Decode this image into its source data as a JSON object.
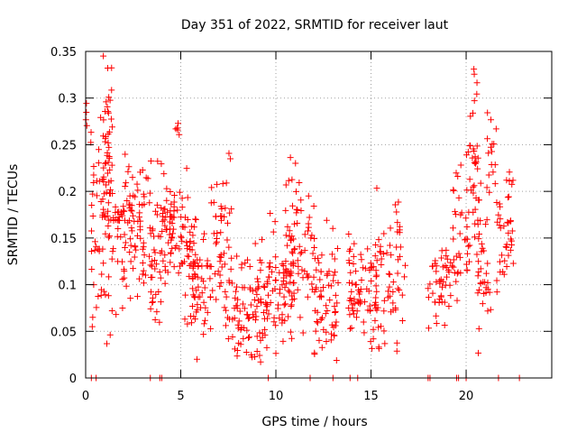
{
  "chart_data": {
    "type": "scatter",
    "title": "Day 351 of 2022, SRMTID for receiver laut",
    "xlabel": "GPS time / hours",
    "ylabel": "SRMTID / TECUs",
    "xlim": [
      0,
      24.5
    ],
    "ylim": [
      0,
      0.35
    ],
    "xticks": [
      0,
      5,
      10,
      15,
      20
    ],
    "yticks": [
      0,
      0.05,
      0.1,
      0.15,
      0.2,
      0.25,
      0.3,
      0.35
    ],
    "ytick_labels": [
      "0",
      "0.05",
      "0.1",
      "0.15",
      "0.2",
      "0.25",
      "0.3",
      "0.35"
    ],
    "grid": true,
    "marker": "+",
    "color": "#ff0000",
    "zero_points_x": [
      0.3,
      0.55,
      3.4,
      3.9,
      4.0,
      9.6,
      11.8,
      13.0,
      13.9,
      14.3,
      18.0,
      18.1,
      19.5,
      19.6,
      20.0,
      21.7,
      22.8
    ],
    "clusters": [
      {
        "x0": 0.0,
        "x1": 0.3,
        "y": 0.28,
        "spread": 0.012,
        "n": 6
      },
      {
        "x0": 0.3,
        "x1": 1.3,
        "y": 0.175,
        "spread": 0.055,
        "n": 70
      },
      {
        "x0": 0.9,
        "x1": 1.4,
        "y": 0.285,
        "spread": 0.035,
        "n": 26
      },
      {
        "x0": 1.3,
        "x1": 2.2,
        "y": 0.15,
        "spread": 0.04,
        "n": 45
      },
      {
        "x0": 2.2,
        "x1": 3.1,
        "y": 0.165,
        "spread": 0.04,
        "n": 55
      },
      {
        "x0": 3.1,
        "x1": 4.0,
        "y": 0.13,
        "spread": 0.04,
        "n": 45
      },
      {
        "x0": 4.0,
        "x1": 5.0,
        "y": 0.155,
        "spread": 0.03,
        "n": 55
      },
      {
        "x0": 4.7,
        "x1": 5.0,
        "y": 0.265,
        "spread": 0.012,
        "n": 5
      },
      {
        "x0": 5.0,
        "x1": 5.8,
        "y": 0.14,
        "spread": 0.035,
        "n": 45
      },
      {
        "x0": 5.5,
        "x1": 6.6,
        "y": 0.1,
        "spread": 0.03,
        "n": 50
      },
      {
        "x0": 6.6,
        "x1": 7.7,
        "y": 0.145,
        "spread": 0.04,
        "n": 55
      },
      {
        "x0": 7.7,
        "x1": 9.6,
        "y": 0.075,
        "spread": 0.03,
        "n": 95
      },
      {
        "x0": 9.6,
        "x1": 11.0,
        "y": 0.1,
        "spread": 0.03,
        "n": 70
      },
      {
        "x0": 10.5,
        "x1": 12.0,
        "y": 0.14,
        "spread": 0.04,
        "n": 60
      },
      {
        "x0": 12.0,
        "x1": 13.3,
        "y": 0.085,
        "spread": 0.035,
        "n": 65
      },
      {
        "x0": 13.8,
        "x1": 15.3,
        "y": 0.095,
        "spread": 0.025,
        "n": 70
      },
      {
        "x0": 15.0,
        "x1": 16.8,
        "y": 0.115,
        "spread": 0.04,
        "n": 65
      },
      {
        "x0": 18.0,
        "x1": 19.3,
        "y": 0.105,
        "spread": 0.025,
        "n": 45
      },
      {
        "x0": 19.3,
        "x1": 20.1,
        "y": 0.15,
        "spread": 0.04,
        "n": 35
      },
      {
        "x0": 20.1,
        "x1": 20.6,
        "y": 0.205,
        "spread": 0.04,
        "n": 30
      },
      {
        "x0": 20.4,
        "x1": 20.6,
        "y": 0.315,
        "spread": 0.012,
        "n": 5
      },
      {
        "x0": 20.6,
        "x1": 21.3,
        "y": 0.135,
        "spread": 0.05,
        "n": 40
      },
      {
        "x0": 21.1,
        "x1": 21.6,
        "y": 0.25,
        "spread": 0.025,
        "n": 14
      },
      {
        "x0": 21.6,
        "x1": 22.5,
        "y": 0.165,
        "spread": 0.04,
        "n": 40
      }
    ]
  }
}
